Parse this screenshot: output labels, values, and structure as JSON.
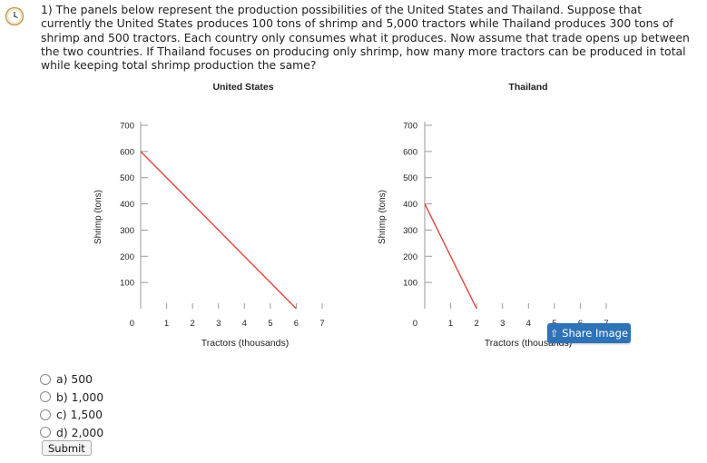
{
  "question": {
    "text": "1) The panels below represent the production possibilities of the United States and Thailand. Suppose that currently the United States produces 100 tons of shrimp and 5,000 tractors while Thailand produces 300 tons of shrimp and 500 tractors. Each country only consumes what it produces. Now assume that trade opens up between the two countries. If Thailand focuses on producing only shrimp, how many more tractors can be produced in total while keeping total shrimp production the same?"
  },
  "chart_data": [
    {
      "type": "line",
      "title": "United States",
      "xlabel": "Tractors (thousands)",
      "ylabel": "Shrimp (tons)",
      "xlim": [
        0,
        7
      ],
      "ylim": [
        0,
        700
      ],
      "xticks": [
        "1",
        "2",
        "3",
        "4",
        "5",
        "6",
        "7"
      ],
      "yticks": [
        "0",
        "100",
        "200",
        "300",
        "400",
        "500",
        "600",
        "700"
      ],
      "series": [
        {
          "x": [
            0,
            6
          ],
          "y": [
            600,
            0
          ],
          "color": "#e0463c"
        }
      ]
    },
    {
      "type": "line",
      "title": "Thailand",
      "xlabel": "Tractors (thousands)",
      "ylabel": "Shrimp (tons)",
      "xlim": [
        0,
        7
      ],
      "ylim": [
        0,
        700
      ],
      "xticks": [
        "1",
        "2",
        "3",
        "4",
        "5",
        "6",
        "7"
      ],
      "yticks": [
        "0",
        "100",
        "200",
        "300",
        "400",
        "500",
        "600",
        "700"
      ],
      "series": [
        {
          "x": [
            0,
            2
          ],
          "y": [
            400,
            0
          ],
          "color": "#e0463c"
        }
      ]
    }
  ],
  "options": [
    {
      "label": "a) 500"
    },
    {
      "label": "b) 1,000"
    },
    {
      "label": "c) 1,500"
    },
    {
      "label": "d) 2,000"
    }
  ],
  "submit_label": "Submit",
  "share_label": "Share Image",
  "colors": {
    "line": "#e0463c",
    "share_button": "#2e73b8"
  }
}
